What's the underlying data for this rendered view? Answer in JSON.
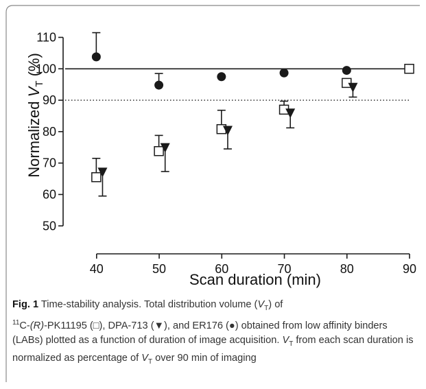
{
  "caption": {
    "label": "Fig. 1",
    "title": "Time-stability analysis.",
    "text_1": "Total distribution volume (",
    "vt_v": "V",
    "vt_sub": "T",
    "text_2": ") of",
    "iso_sup": "11",
    "text_3": "C-",
    "r_italic": "(R)",
    "text_4": "-PK11195 (□), DPA-713 (▼), and ER176 (●) obtained from low affinity binders (LABs) plotted as a function of duration of image acquisition. ",
    "vt2_v": "V",
    "vt2_sub": "T",
    "text_5": " from each scan duration is normalized as percentage of ",
    "vt3_v": "V",
    "vt3_sub": "T",
    "text_6": " over 90 min of imaging"
  },
  "chart_data": {
    "type": "scatter",
    "xlabel": "Scan duration (min)",
    "ylabel_prefix": "Normalized ",
    "ylabel_v": "V",
    "ylabel_sub": "T",
    "ylabel_suffix": " (%)",
    "xlim": [
      37.5,
      90
    ],
    "ylim": [
      47,
      116
    ],
    "x_ticks": [
      40,
      50,
      60,
      70,
      80,
      90
    ],
    "y_ticks": [
      50,
      60,
      70,
      80,
      90,
      100,
      110
    ],
    "reference_lines": [
      {
        "y": 100,
        "style": "solid"
      },
      {
        "y": 90,
        "style": "dotted"
      }
    ],
    "colors": {
      "marker": "#1a1a1a",
      "open_fill": "#ffffff"
    },
    "series": [
      {
        "marker": "filled-circle",
        "offset": -0.05,
        "points": [
          {
            "x": 40,
            "y": 103.8,
            "err_up": 111.5
          },
          {
            "x": 50,
            "y": 94.8,
            "err_up": 98.5
          },
          {
            "x": 60,
            "y": 97.5
          },
          {
            "x": 70,
            "y": 98.7
          },
          {
            "x": 80,
            "y": 99.5
          },
          {
            "x": 90,
            "y": 100
          }
        ]
      },
      {
        "marker": "open-square",
        "offset": -0.05,
        "points": [
          {
            "x": 40,
            "y": 65.5,
            "err_up": 71.5
          },
          {
            "x": 50,
            "y": 73.8,
            "err_up": 78.8
          },
          {
            "x": 60,
            "y": 80.8,
            "err_up": 86.8
          },
          {
            "x": 70,
            "y": 87.0,
            "err_up": 89.7
          },
          {
            "x": 80,
            "y": 95.5
          },
          {
            "x": 90,
            "y": 100
          }
        ]
      },
      {
        "marker": "filled-triangle-down",
        "offset": 0.95,
        "points": [
          {
            "x": 40,
            "y": 67.0,
            "err_down": 59.5
          },
          {
            "x": 50,
            "y": 74.8,
            "err_down": 67.3
          },
          {
            "x": 60,
            "y": 80.3,
            "err_down": 74.5
          },
          {
            "x": 70,
            "y": 85.8,
            "err_down": 81.2
          },
          {
            "x": 80,
            "y": 94.0,
            "err_down": 91.0
          }
        ]
      }
    ]
  }
}
